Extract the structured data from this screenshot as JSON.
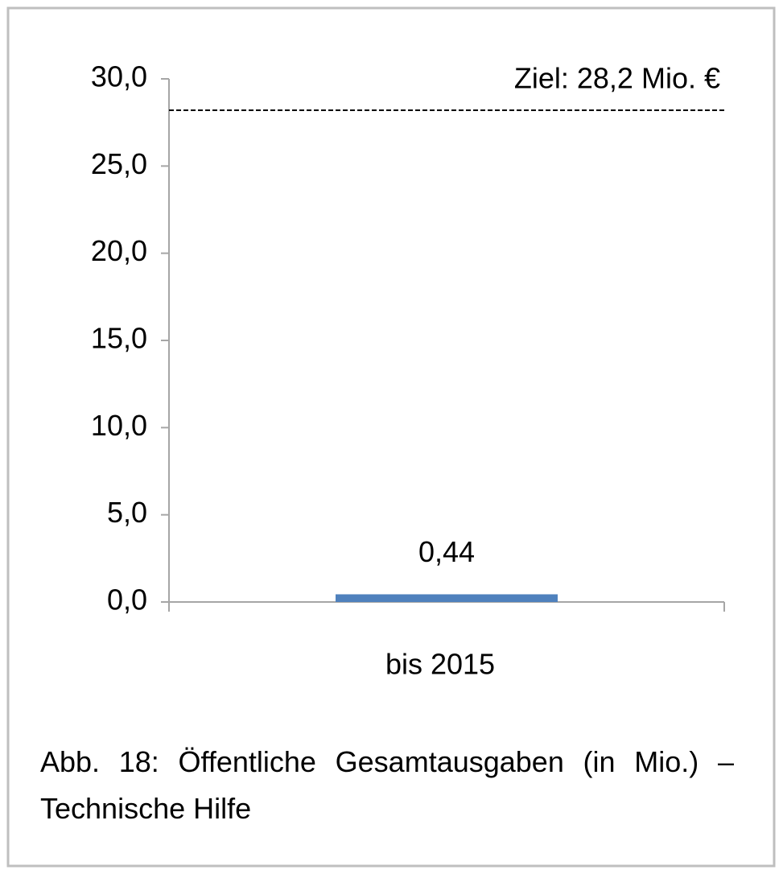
{
  "chart_data": {
    "type": "bar",
    "categories": [
      "bis 2015"
    ],
    "values": [
      0.44
    ],
    "value_labels": [
      "0,44"
    ],
    "color": "#4f81bd",
    "ylim": [
      0,
      30
    ],
    "yticks": [
      {
        "value": 0,
        "label": "0,0"
      },
      {
        "value": 5,
        "label": "5,0"
      },
      {
        "value": 10,
        "label": "10,0"
      },
      {
        "value": 15,
        "label": "15,0"
      },
      {
        "value": 20,
        "label": "20,0"
      },
      {
        "value": 25,
        "label": "25,0"
      },
      {
        "value": 30,
        "label": "30,0"
      }
    ],
    "reference_line": {
      "value": 28.2,
      "label": "Ziel: 28,2 Mio. €"
    },
    "caption": "Abb. 18: Öffentliche Gesamtausgaben (in Mio.) – Technische Hilfe"
  }
}
